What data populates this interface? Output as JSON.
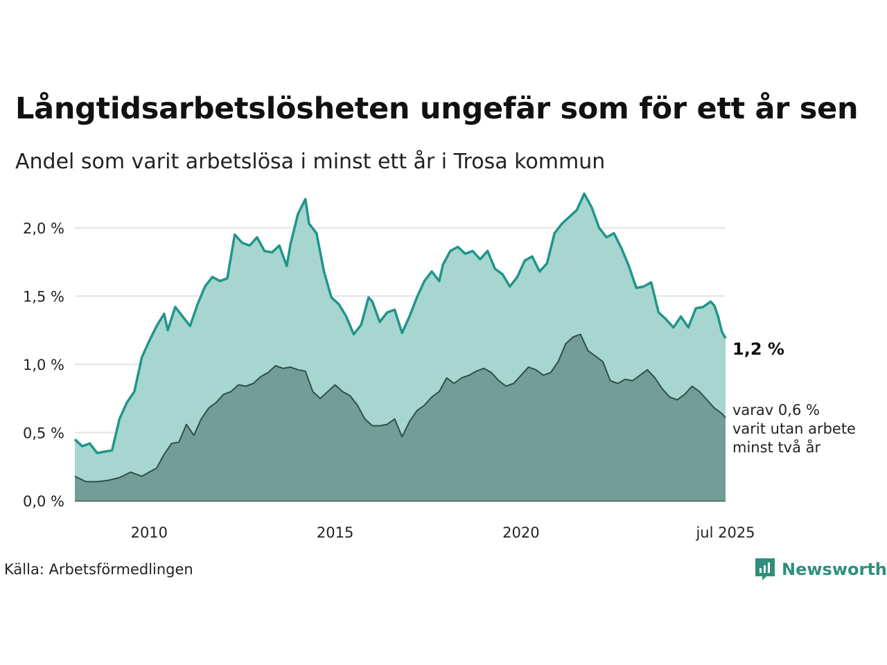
{
  "title": "Långtidsarbetslösheten ungefär som för ett år sen",
  "subtitle": "Andel som varit arbetslösa i minst ett år i Trosa kommun",
  "source": "Källa: Arbetsförmedlingen",
  "brand": "Newsworthy",
  "label_main": "1,2 %",
  "label_sub_lines": [
    "varav 0,6 %",
    "varit utan arbete",
    "minst två år"
  ],
  "colors": {
    "main_fill": "#a6d6cf",
    "main_line": "#20958a",
    "sub_fill": "#729e95",
    "sub_line": "#2e4f49",
    "grid": "#e3e3e3",
    "brand": "#2f8f7c"
  },
  "chart_data": {
    "type": "area",
    "y_tick_labels": [
      "0,0 %",
      "0,5 %",
      "1,0 %",
      "1,5 %",
      "2,0 %"
    ],
    "y_tick_values": [
      0,
      0.5,
      1.0,
      1.5,
      2.0
    ],
    "x_tick_labels": [
      "2010",
      "2015",
      "2020",
      "jul 2025"
    ],
    "x_tick_values": [
      2010.0,
      2015.0,
      2020.0,
      2025.5
    ],
    "xlim": [
      2008.0,
      2025.5
    ],
    "ylim": [
      0,
      2.4
    ],
    "grid": true,
    "series": [
      {
        "key": "min-1-year",
        "points": [
          [
            2008.0,
            0.45
          ],
          [
            2008.2,
            0.4
          ],
          [
            2008.4,
            0.42
          ],
          [
            2008.6,
            0.35
          ],
          [
            2008.8,
            0.36
          ],
          [
            2009.0,
            0.37
          ],
          [
            2009.2,
            0.6
          ],
          [
            2009.4,
            0.72
          ],
          [
            2009.6,
            0.8
          ],
          [
            2009.8,
            1.05
          ],
          [
            2010.0,
            1.17
          ],
          [
            2010.2,
            1.28
          ],
          [
            2010.4,
            1.37
          ],
          [
            2010.5,
            1.25
          ],
          [
            2010.7,
            1.42
          ],
          [
            2010.9,
            1.35
          ],
          [
            2011.1,
            1.28
          ],
          [
            2011.3,
            1.44
          ],
          [
            2011.5,
            1.57
          ],
          [
            2011.7,
            1.64
          ],
          [
            2011.9,
            1.61
          ],
          [
            2012.1,
            1.63
          ],
          [
            2012.3,
            1.95
          ],
          [
            2012.5,
            1.89
          ],
          [
            2012.7,
            1.87
          ],
          [
            2012.9,
            1.93
          ],
          [
            2013.1,
            1.83
          ],
          [
            2013.3,
            1.82
          ],
          [
            2013.5,
            1.87
          ],
          [
            2013.7,
            1.72
          ],
          [
            2013.8,
            1.88
          ],
          [
            2014.0,
            2.1
          ],
          [
            2014.2,
            2.21
          ],
          [
            2014.3,
            2.03
          ],
          [
            2014.5,
            1.96
          ],
          [
            2014.7,
            1.68
          ],
          [
            2014.9,
            1.49
          ],
          [
            2015.1,
            1.44
          ],
          [
            2015.3,
            1.35
          ],
          [
            2015.5,
            1.22
          ],
          [
            2015.7,
            1.29
          ],
          [
            2015.9,
            1.49
          ],
          [
            2016.0,
            1.46
          ],
          [
            2016.2,
            1.31
          ],
          [
            2016.4,
            1.38
          ],
          [
            2016.6,
            1.4
          ],
          [
            2016.8,
            1.23
          ],
          [
            2017.0,
            1.35
          ],
          [
            2017.2,
            1.49
          ],
          [
            2017.4,
            1.61
          ],
          [
            2017.6,
            1.68
          ],
          [
            2017.8,
            1.61
          ],
          [
            2017.9,
            1.73
          ],
          [
            2018.1,
            1.83
          ],
          [
            2018.3,
            1.86
          ],
          [
            2018.5,
            1.81
          ],
          [
            2018.7,
            1.83
          ],
          [
            2018.9,
            1.77
          ],
          [
            2019.1,
            1.83
          ],
          [
            2019.3,
            1.7
          ],
          [
            2019.5,
            1.66
          ],
          [
            2019.7,
            1.57
          ],
          [
            2019.9,
            1.64
          ],
          [
            2020.1,
            1.76
          ],
          [
            2020.3,
            1.79
          ],
          [
            2020.5,
            1.68
          ],
          [
            2020.7,
            1.74
          ],
          [
            2020.9,
            1.96
          ],
          [
            2021.1,
            2.03
          ],
          [
            2021.3,
            2.08
          ],
          [
            2021.5,
            2.13
          ],
          [
            2021.7,
            2.25
          ],
          [
            2021.9,
            2.15
          ],
          [
            2022.1,
            2.0
          ],
          [
            2022.3,
            1.93
          ],
          [
            2022.5,
            1.96
          ],
          [
            2022.7,
            1.85
          ],
          [
            2022.9,
            1.72
          ],
          [
            2023.1,
            1.56
          ],
          [
            2023.3,
            1.57
          ],
          [
            2023.5,
            1.6
          ],
          [
            2023.7,
            1.38
          ],
          [
            2023.9,
            1.33
          ],
          [
            2024.1,
            1.27
          ],
          [
            2024.3,
            1.35
          ],
          [
            2024.5,
            1.27
          ],
          [
            2024.7,
            1.41
          ],
          [
            2024.9,
            1.42
          ],
          [
            2025.1,
            1.46
          ],
          [
            2025.2,
            1.43
          ],
          [
            2025.3,
            1.35
          ],
          [
            2025.4,
            1.24
          ],
          [
            2025.5,
            1.19
          ]
        ]
      },
      {
        "key": "min-2-years",
        "points": [
          [
            2008.0,
            0.18
          ],
          [
            2008.3,
            0.14
          ],
          [
            2008.6,
            0.14
          ],
          [
            2008.9,
            0.15
          ],
          [
            2009.2,
            0.17
          ],
          [
            2009.5,
            0.21
          ],
          [
            2009.8,
            0.18
          ],
          [
            2010.0,
            0.21
          ],
          [
            2010.2,
            0.24
          ],
          [
            2010.4,
            0.34
          ],
          [
            2010.6,
            0.42
          ],
          [
            2010.8,
            0.43
          ],
          [
            2011.0,
            0.56
          ],
          [
            2011.2,
            0.48
          ],
          [
            2011.4,
            0.6
          ],
          [
            2011.6,
            0.68
          ],
          [
            2011.8,
            0.72
          ],
          [
            2012.0,
            0.78
          ],
          [
            2012.2,
            0.8
          ],
          [
            2012.4,
            0.85
          ],
          [
            2012.6,
            0.84
          ],
          [
            2012.8,
            0.86
          ],
          [
            2013.0,
            0.91
          ],
          [
            2013.2,
            0.94
          ],
          [
            2013.4,
            0.99
          ],
          [
            2013.6,
            0.97
          ],
          [
            2013.8,
            0.98
          ],
          [
            2014.0,
            0.96
          ],
          [
            2014.2,
            0.95
          ],
          [
            2014.4,
            0.8
          ],
          [
            2014.6,
            0.75
          ],
          [
            2014.8,
            0.8
          ],
          [
            2015.0,
            0.85
          ],
          [
            2015.2,
            0.8
          ],
          [
            2015.4,
            0.77
          ],
          [
            2015.6,
            0.7
          ],
          [
            2015.8,
            0.6
          ],
          [
            2016.0,
            0.55
          ],
          [
            2016.2,
            0.55
          ],
          [
            2016.4,
            0.56
          ],
          [
            2016.6,
            0.6
          ],
          [
            2016.8,
            0.47
          ],
          [
            2017.0,
            0.58
          ],
          [
            2017.2,
            0.66
          ],
          [
            2017.4,
            0.7
          ],
          [
            2017.6,
            0.76
          ],
          [
            2017.8,
            0.8
          ],
          [
            2018.0,
            0.9
          ],
          [
            2018.2,
            0.86
          ],
          [
            2018.4,
            0.9
          ],
          [
            2018.6,
            0.92
          ],
          [
            2018.8,
            0.95
          ],
          [
            2019.0,
            0.97
          ],
          [
            2019.2,
            0.94
          ],
          [
            2019.4,
            0.88
          ],
          [
            2019.6,
            0.84
          ],
          [
            2019.8,
            0.86
          ],
          [
            2020.0,
            0.92
          ],
          [
            2020.2,
            0.98
          ],
          [
            2020.4,
            0.96
          ],
          [
            2020.6,
            0.92
          ],
          [
            2020.8,
            0.94
          ],
          [
            2021.0,
            1.02
          ],
          [
            2021.2,
            1.15
          ],
          [
            2021.4,
            1.2
          ],
          [
            2021.6,
            1.22
          ],
          [
            2021.8,
            1.1
          ],
          [
            2022.0,
            1.06
          ],
          [
            2022.2,
            1.02
          ],
          [
            2022.4,
            0.88
          ],
          [
            2022.6,
            0.86
          ],
          [
            2022.8,
            0.89
          ],
          [
            2023.0,
            0.88
          ],
          [
            2023.2,
            0.92
          ],
          [
            2023.4,
            0.96
          ],
          [
            2023.6,
            0.9
          ],
          [
            2023.8,
            0.82
          ],
          [
            2024.0,
            0.76
          ],
          [
            2024.2,
            0.74
          ],
          [
            2024.4,
            0.78
          ],
          [
            2024.6,
            0.84
          ],
          [
            2024.8,
            0.8
          ],
          [
            2025.0,
            0.74
          ],
          [
            2025.2,
            0.68
          ],
          [
            2025.4,
            0.64
          ],
          [
            2025.5,
            0.61
          ]
        ]
      }
    ]
  }
}
